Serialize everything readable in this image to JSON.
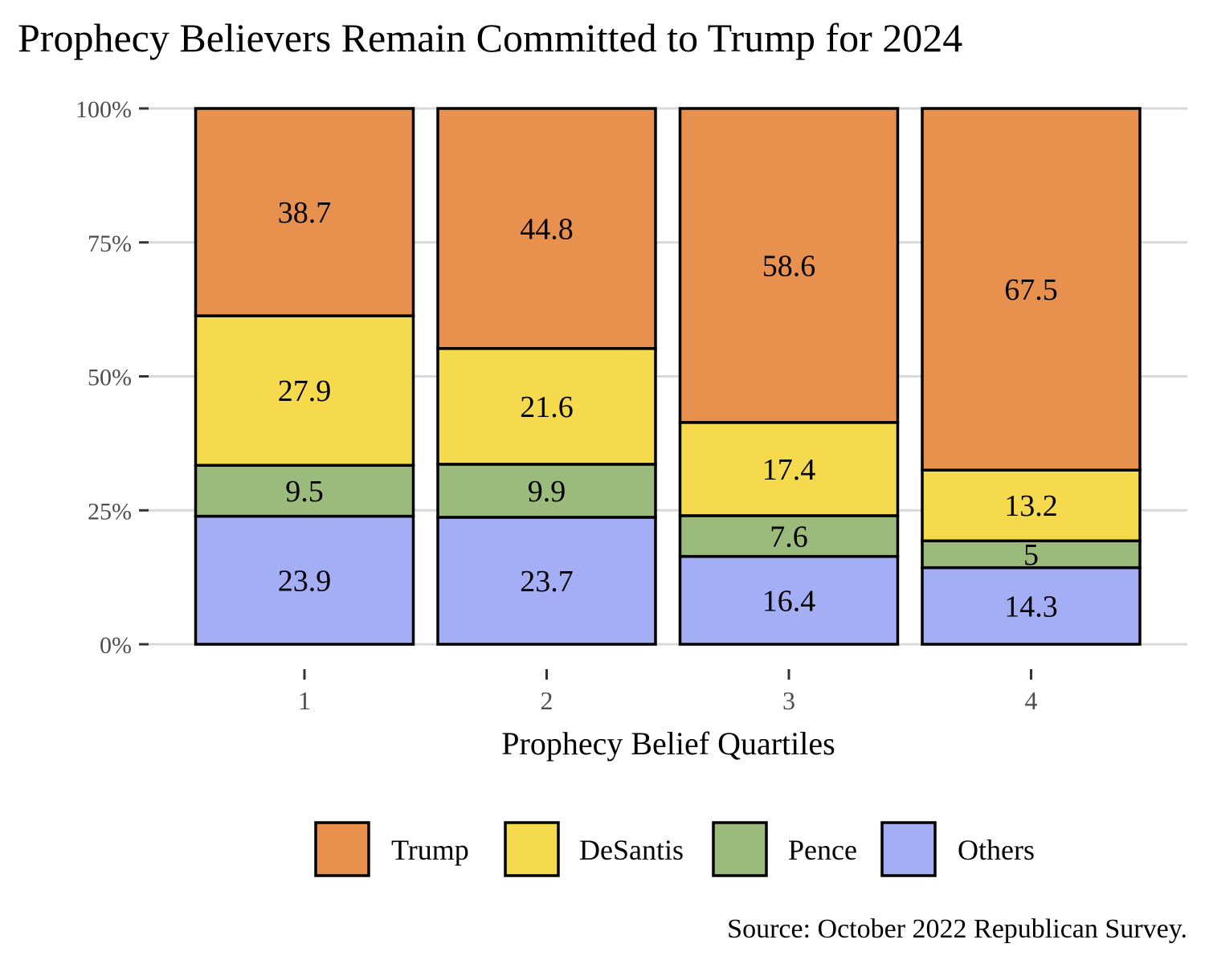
{
  "chart_data": {
    "type": "bar",
    "stacked": true,
    "title": "Prophecy Believers Remain Committed to Trump for 2024",
    "xlabel": "Prophecy Belief Quartiles",
    "ylabel": "",
    "caption": "Source: October 2022 Republican Survey.",
    "categories": [
      "1",
      "2",
      "3",
      "4"
    ],
    "ylim": [
      0,
      100
    ],
    "yticks": [
      0,
      25,
      50,
      75,
      100
    ],
    "ytick_labels": [
      "0%",
      "25%",
      "50%",
      "75%",
      "100%"
    ],
    "grid": true,
    "legend_position": "bottom",
    "series": [
      {
        "name": "Trump",
        "color": "#E8914F",
        "values": [
          38.7,
          44.8,
          58.6,
          67.5
        ],
        "labels": [
          "38.7",
          "44.8",
          "58.6",
          "67.5"
        ]
      },
      {
        "name": "DeSantis",
        "color": "#F5DA4E",
        "values": [
          27.9,
          21.6,
          17.4,
          13.2
        ],
        "labels": [
          "27.9",
          "21.6",
          "17.4",
          "13.2"
        ]
      },
      {
        "name": "Pence",
        "color": "#9BBB7C",
        "values": [
          9.5,
          9.9,
          7.6,
          5.0
        ],
        "labels": [
          "9.5",
          "9.9",
          "7.6",
          "5"
        ]
      },
      {
        "name": "Others",
        "color": "#A4AEF5",
        "values": [
          23.9,
          23.7,
          16.4,
          14.3
        ],
        "labels": [
          "23.9",
          "23.7",
          "16.4",
          "14.3"
        ]
      }
    ]
  }
}
